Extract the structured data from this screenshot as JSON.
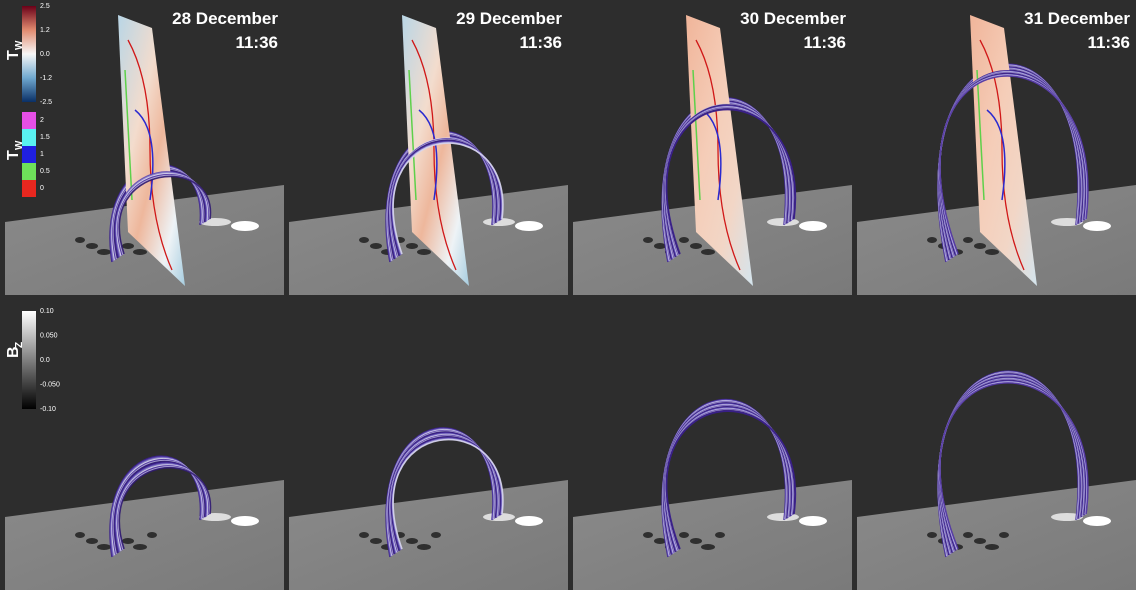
{
  "panels": [
    {
      "date": "28 December",
      "time": "11:36"
    },
    {
      "date": "29 December",
      "time": "11:36"
    },
    {
      "date": "30 December",
      "time": "11:36"
    },
    {
      "date": "31 December",
      "time": "11:36"
    }
  ],
  "colorbars": {
    "twist": {
      "label": "T",
      "subscript": "W",
      "ticks": [
        "2.5",
        "1.2",
        "0.0",
        "-1.2",
        "-2.5"
      ]
    },
    "twist_contours": {
      "label": "T",
      "subscript": "W",
      "ticks": [
        "2",
        "1.5",
        "1",
        "0.5",
        "0"
      ]
    },
    "bz": {
      "label": "B",
      "subscript": "Z",
      "ticks": [
        "0.10",
        "0.050",
        "0.0",
        "-0.050",
        "-0.10"
      ]
    }
  }
}
